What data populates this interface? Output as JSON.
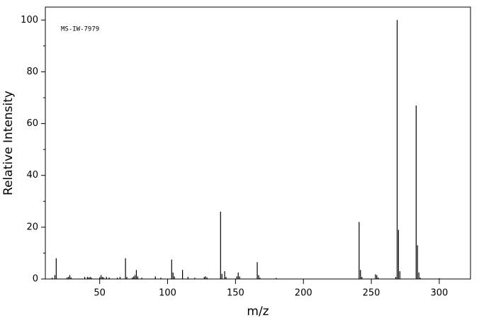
{
  "chart_data": {
    "type": "stem",
    "annotation": "MS-IW-7979",
    "x_label": "m/z",
    "y_label": "Relative Intensity",
    "color": "#000000",
    "x": [
      15,
      17,
      18,
      26,
      27,
      28,
      29,
      39,
      41,
      42,
      43,
      44,
      50,
      51,
      52,
      53,
      55,
      57,
      63,
      65,
      69,
      70,
      74,
      75,
      76,
      77,
      78,
      81,
      91,
      95,
      103,
      104,
      105,
      111,
      115,
      120,
      127,
      128,
      129,
      139,
      140,
      142,
      143,
      151,
      152,
      153,
      166,
      167,
      168,
      180,
      241,
      242,
      243,
      253,
      254,
      255,
      268,
      269,
      270,
      271,
      283,
      284,
      285,
      286,
      300
    ],
    "values": [
      0.5,
      1.5,
      8,
      0.6,
      0.8,
      1.5,
      0.6,
      0.8,
      0.8,
      0.6,
      0.8,
      0.5,
      0.7,
      1.5,
      0.8,
      0.6,
      0.8,
      0.6,
      0.5,
      0.8,
      8,
      0.8,
      0.6,
      1,
      1.5,
      3.5,
      1,
      0.5,
      1,
      0.5,
      7.5,
      2.5,
      1,
      3.5,
      0.8,
      0.5,
      0.8,
      1,
      0.6,
      26,
      2,
      3,
      0.8,
      1,
      2.5,
      1,
      6.5,
      1.5,
      0.5,
      0.4,
      22,
      3.5,
      0.8,
      1.8,
      1.5,
      0.6,
      0.8,
      100,
      19,
      3,
      67,
      13,
      2.5,
      0.5,
      0.3
    ],
    "xlim": [
      10,
      323
    ],
    "ylim": [
      0,
      105
    ],
    "xticks": [
      50,
      100,
      150,
      200,
      250,
      300
    ],
    "yticks": [
      0,
      20,
      40,
      60,
      80,
      100
    ],
    "yminorticks": [
      10,
      30,
      50,
      70,
      90
    ]
  }
}
